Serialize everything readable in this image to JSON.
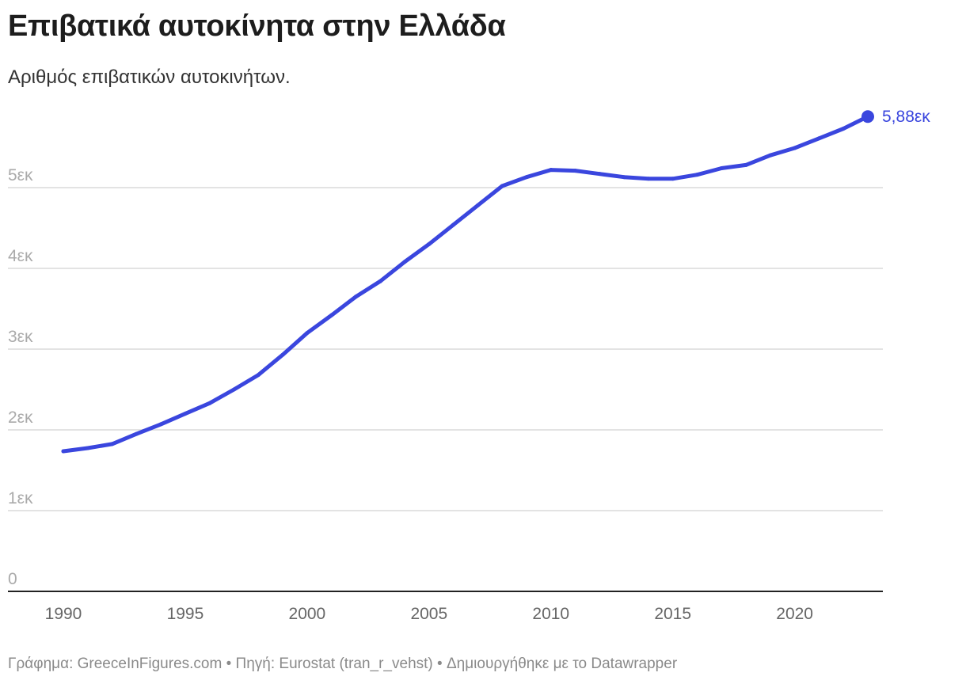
{
  "header": {
    "title": "Επιβατικά αυτοκίνητα στην Ελλάδα",
    "subtitle": "Αριθμός επιβατικών αυτοκινήτων."
  },
  "footer": {
    "text": "Γράφημα: GreeceInFigures.com • Πηγή: Eurostat (tran_r_vehst) • Δημιουργήθηκε με το Datawrapper"
  },
  "colors": {
    "line": "#3a46de",
    "grid": "#e3e3e3",
    "axis": "#222222"
  },
  "chart_data": {
    "type": "line",
    "title": "Επιβατικά αυτοκίνητα στην Ελλάδα",
    "subtitle": "Αριθμός επιβατικών αυτοκινήτων.",
    "xlabel": "",
    "ylabel": "",
    "xlim": [
      1990,
      2023
    ],
    "ylim": [
      0,
      5900000
    ],
    "grid": true,
    "x_ticks": [
      1990,
      1995,
      2000,
      2005,
      2010,
      2015,
      2020
    ],
    "x_tick_labels": [
      "1990",
      "1995",
      "2000",
      "2005",
      "2010",
      "2015",
      "2020"
    ],
    "y_ticks": [
      0,
      1000000,
      2000000,
      3000000,
      4000000,
      5000000
    ],
    "y_tick_labels": [
      "0",
      "1εκ",
      "2εκ",
      "3εκ",
      "4εκ",
      "5εκ"
    ],
    "end_label": "5,88εκ",
    "x": [
      1990,
      1991,
      1992,
      1993,
      1994,
      1995,
      1996,
      1997,
      1998,
      1999,
      2000,
      2001,
      2002,
      2003,
      2004,
      2005,
      2006,
      2007,
      2008,
      2009,
      2010,
      2011,
      2012,
      2013,
      2014,
      2015,
      2016,
      2017,
      2018,
      2019,
      2020,
      2021,
      2022,
      2023
    ],
    "series": [
      {
        "values": [
          1735000,
          1775000,
          1825000,
          1950000,
          2070000,
          2200000,
          2330000,
          2500000,
          2680000,
          2930000,
          3200000,
          3420000,
          3650000,
          3840000,
          4080000,
          4300000,
          4540000,
          4780000,
          5020000,
          5130000,
          5220000,
          5210000,
          5170000,
          5130000,
          5110000,
          5110000,
          5160000,
          5240000,
          5280000,
          5400000,
          5490000,
          5610000,
          5730000,
          5880000
        ]
      }
    ]
  }
}
